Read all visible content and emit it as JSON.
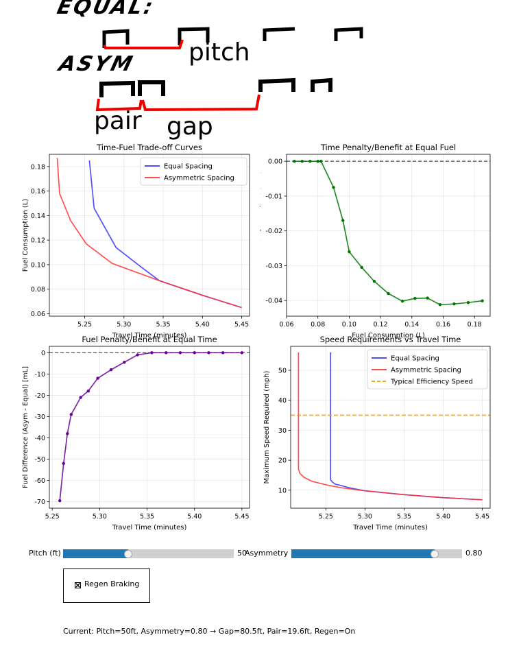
{
  "diagram": {
    "equal_label": "EQUAL:",
    "asym_label": "ASYM",
    "pitch_label": "pitch",
    "pair_label": "pair",
    "gap_label": "gap"
  },
  "chart_data": [
    {
      "type": "line",
      "title": "Time-Fuel Trade-off Curves",
      "xlabel": "Travel Time (minutes)",
      "ylabel": "Fuel Consumption (L)",
      "xlim": [
        5.205,
        5.46
      ],
      "ylim": [
        0.058,
        0.19
      ],
      "xticks": [
        5.25,
        5.3,
        5.35,
        5.4,
        5.45
      ],
      "yticks": [
        0.06,
        0.08,
        0.1,
        0.12,
        0.14,
        0.16,
        0.18
      ],
      "grid": true,
      "legend": "top-right",
      "series": [
        {
          "name": "Equal Spacing",
          "color": "#3333ff",
          "x": [
            5.256,
            5.262,
            5.29,
            5.32,
            5.345,
            5.4,
            5.45
          ],
          "y": [
            0.185,
            0.146,
            0.114,
            0.099,
            0.087,
            0.075,
            0.065
          ]
        },
        {
          "name": "Asymmetric Spacing",
          "color": "#ff3333",
          "x": [
            5.215,
            5.218,
            5.232,
            5.252,
            5.285,
            5.345,
            5.4,
            5.45
          ],
          "y": [
            0.187,
            0.158,
            0.136,
            0.117,
            0.101,
            0.087,
            0.075,
            0.065
          ]
        }
      ]
    },
    {
      "type": "line",
      "title": "Time Penalty/Benefit at Equal Fuel",
      "xlabel": "Fuel Consumption (L)",
      "ylabel": "Time Difference (Asym - Equal) [min]",
      "xlim": [
        0.06,
        0.19
      ],
      "ylim": [
        -0.0445,
        0.002
      ],
      "xticks": [
        0.06,
        0.08,
        0.1,
        0.12,
        0.14,
        0.16,
        0.18
      ],
      "yticks": [
        0.0,
        -0.01,
        -0.02,
        -0.03,
        -0.04
      ],
      "grid": true,
      "reference_line": 0,
      "series": [
        {
          "name": "",
          "color": "#007700",
          "x": [
            0.065,
            0.07,
            0.075,
            0.08,
            0.082,
            0.09,
            0.096,
            0.1,
            0.108,
            0.116,
            0.125,
            0.134,
            0.142,
            0.15,
            0.158,
            0.167,
            0.176,
            0.185
          ],
          "y": [
            0.0,
            0.0,
            0.0,
            0.0,
            0.0,
            -0.0075,
            -0.017,
            -0.026,
            -0.0305,
            -0.0345,
            -0.038,
            -0.0402,
            -0.0394,
            -0.0393,
            -0.0412,
            -0.041,
            -0.0406,
            -0.0401
          ]
        }
      ]
    },
    {
      "type": "line",
      "title": "Fuel Penalty/Benefit at Equal Time",
      "xlabel": "Travel Time (minutes)",
      "ylabel": "Fuel Difference (Asym - Equal) [mL]",
      "xlim": [
        5.247,
        5.458
      ],
      "ylim": [
        -73,
        3
      ],
      "xticks": [
        5.25,
        5.3,
        5.35,
        5.4,
        5.45
      ],
      "yticks": [
        0,
        -10,
        -20,
        -30,
        -40,
        -50,
        -60,
        -70
      ],
      "grid": true,
      "reference_line": 0,
      "series": [
        {
          "name": "",
          "color": "#660099",
          "x": [
            5.258,
            5.262,
            5.266,
            5.27,
            5.28,
            5.288,
            5.298,
            5.312,
            5.326,
            5.34,
            5.355,
            5.37,
            5.385,
            5.4,
            5.415,
            5.43,
            5.45
          ],
          "y": [
            -69.5,
            -52,
            -38,
            -29,
            -21,
            -18,
            -12,
            -8,
            -4.5,
            -1,
            0,
            0,
            0,
            0,
            0,
            0,
            0
          ]
        }
      ]
    },
    {
      "type": "line",
      "title": "Speed Requirements vs Travel Time",
      "xlabel": "Travel Time (minutes)",
      "ylabel": "Maximum Speed Required (mph)",
      "xlim": [
        5.205,
        5.46
      ],
      "ylim": [
        4,
        58
      ],
      "xticks": [
        5.25,
        5.3,
        5.35,
        5.4,
        5.45
      ],
      "yticks": [
        10,
        20,
        30,
        40,
        50
      ],
      "grid": true,
      "legend": "top-right",
      "series": [
        {
          "name": "Equal Spacing",
          "color": "#3333ff",
          "x": [
            5.256,
            5.256,
            5.258,
            5.262,
            5.27,
            5.28,
            5.3,
            5.35,
            5.4,
            5.45
          ],
          "y": [
            56,
            13.5,
            12.8,
            12.0,
            11.5,
            10.8,
            9.8,
            8.5,
            7.5,
            6.8
          ]
        },
        {
          "name": "Asymmetric Spacing",
          "color": "#ff3333",
          "x": [
            5.215,
            5.215,
            5.217,
            5.222,
            5.232,
            5.25,
            5.27,
            5.3,
            5.35,
            5.4,
            5.45
          ],
          "y": [
            56,
            17,
            15.5,
            14.3,
            13.0,
            11.8,
            10.8,
            9.8,
            8.5,
            7.5,
            6.8
          ]
        },
        {
          "name": "Typical Efficiency Speed",
          "color": "#f0a000",
          "dashed": true,
          "x": [
            5.205,
            5.46
          ],
          "y": [
            35,
            35
          ]
        }
      ]
    }
  ],
  "controls": {
    "pitch_label": "Pitch (ft)",
    "pitch_value": "50",
    "pitch_fraction": 0.38,
    "asymmetry_label": "Asymmetry",
    "asymmetry_value": "0.80",
    "asymmetry_fraction": 0.84,
    "regen_label": "Regen Braking",
    "regen_checked": true,
    "status": "Current: Pitch=50ft, Asymmetry=0.80 → Gap=80.5ft, Pair=19.6ft, Regen=On"
  }
}
